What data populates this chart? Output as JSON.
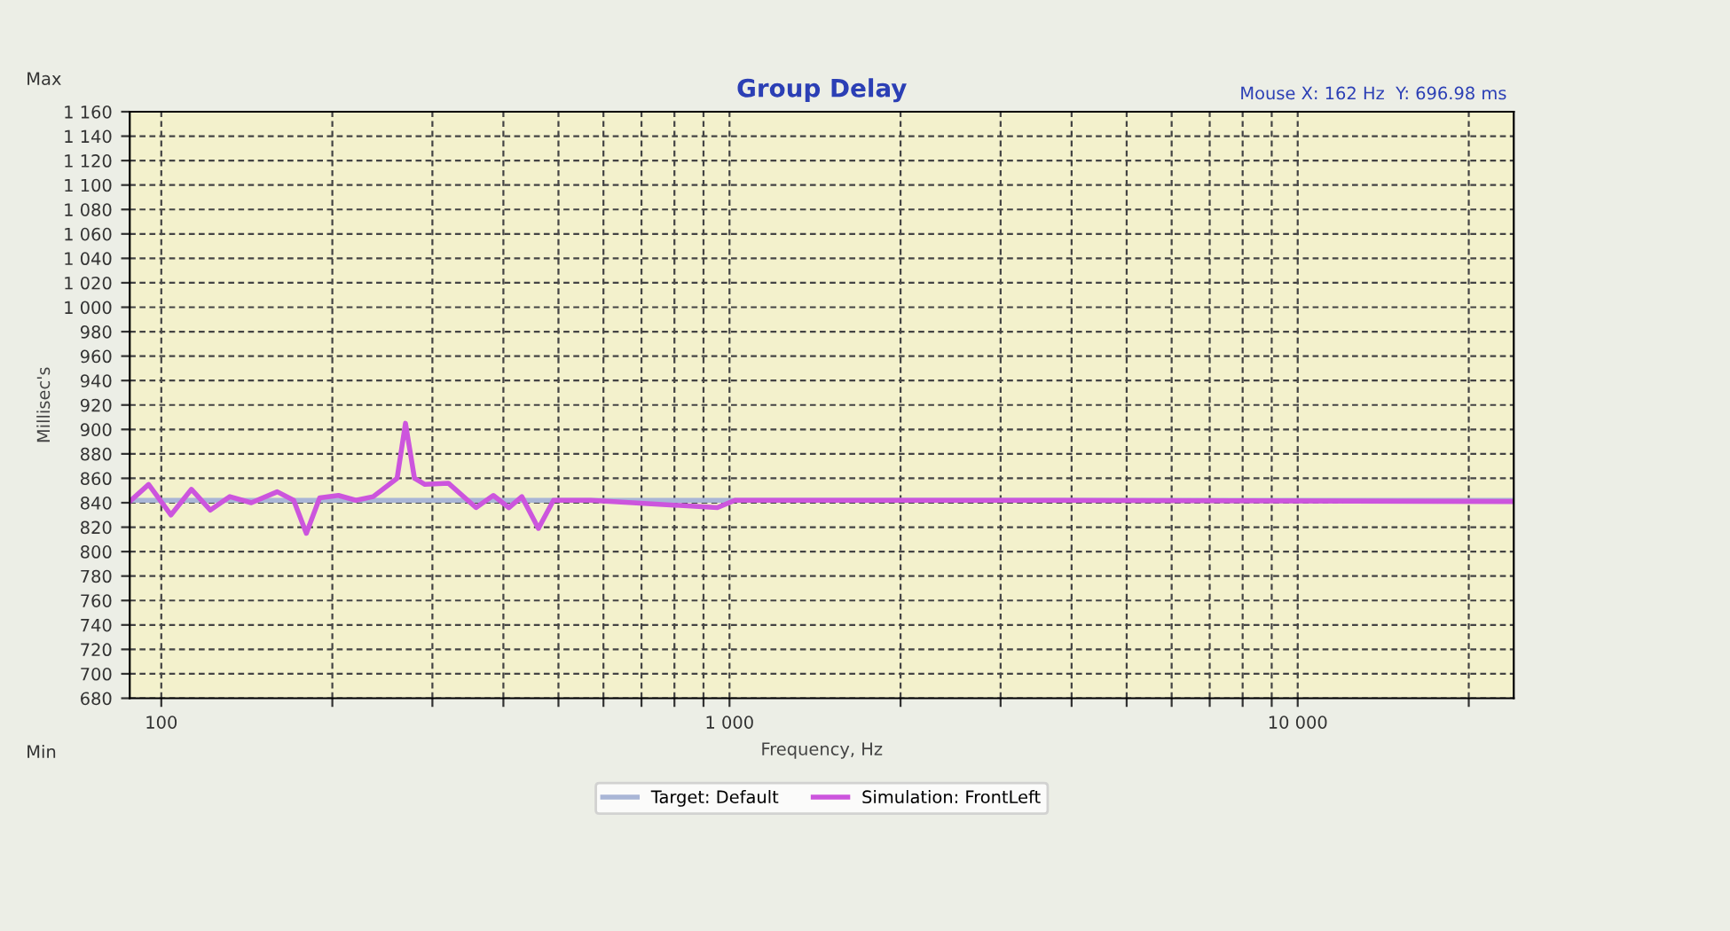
{
  "chart_data": {
    "type": "line",
    "title": "Group Delay",
    "xlabel": "Frequency, Hz",
    "ylabel": "Millisec's",
    "x": [
      88,
      95,
      104,
      113,
      122,
      132,
      144,
      160,
      171,
      180,
      190,
      205,
      220,
      236,
      260,
      269,
      279,
      291,
      320,
      358,
      384,
      409,
      431,
      461,
      490,
      570,
      952,
      1022,
      3800,
      24000
    ],
    "series": [
      {
        "name": "Target: Default",
        "color": "#a9b6d6",
        "values": [
          842,
          842,
          842,
          842,
          842,
          842,
          842,
          842,
          842,
          842,
          842,
          842,
          842,
          842,
          842,
          842,
          842,
          842,
          842,
          842,
          842,
          842,
          842,
          842,
          842,
          842,
          842,
          842,
          842,
          842
        ]
      },
      {
        "name": "Simulation: FrontLeft",
        "color": "#cc55dd",
        "values": [
          841,
          855,
          830,
          851,
          834,
          845,
          840,
          849,
          842,
          815,
          844,
          846,
          842,
          845,
          860,
          905,
          860,
          855,
          856,
          836,
          846,
          836,
          845,
          819,
          842,
          842,
          836,
          842,
          842,
          841
        ]
      }
    ],
    "log": "x",
    "xlim": [
      88,
      24000
    ],
    "xticks": [
      {
        "value": 100,
        "label": "100"
      },
      {
        "value": 200,
        "label": null
      },
      {
        "value": 300,
        "label": null
      },
      {
        "value": 400,
        "label": null
      },
      {
        "value": 500,
        "label": null
      },
      {
        "value": 600,
        "label": null
      },
      {
        "value": 700,
        "label": null
      },
      {
        "value": 800,
        "label": null
      },
      {
        "value": 900,
        "label": null
      },
      {
        "value": 1000,
        "label": "1 000"
      },
      {
        "value": 2000,
        "label": null
      },
      {
        "value": 3000,
        "label": null
      },
      {
        "value": 4000,
        "label": null
      },
      {
        "value": 5000,
        "label": null
      },
      {
        "value": 6000,
        "label": null
      },
      {
        "value": 7000,
        "label": null
      },
      {
        "value": 8000,
        "label": null
      },
      {
        "value": 9000,
        "label": null
      },
      {
        "value": 10000,
        "label": "10 000"
      },
      {
        "value": 20000,
        "label": null
      }
    ],
    "ylim": [
      680,
      1160
    ],
    "yticks": [
      680,
      700,
      720,
      740,
      760,
      780,
      800,
      820,
      840,
      860,
      880,
      900,
      920,
      940,
      960,
      980,
      {
        "value": 1000,
        "label": "1 000"
      },
      {
        "value": 1020,
        "label": "1 020"
      },
      {
        "value": 1040,
        "label": "1 040"
      },
      {
        "value": 1060,
        "label": "1 060"
      },
      {
        "value": 1080,
        "label": "1 080"
      },
      {
        "value": 1100,
        "label": "1 100"
      },
      {
        "value": 1120,
        "label": "1 120"
      },
      {
        "value": 1140,
        "label": "1 140"
      },
      {
        "value": 1160,
        "label": "1 160"
      }
    ],
    "grid": true,
    "legend": "bottom",
    "marker": "none",
    "line_style": "solid",
    "annotations": [
      "Mouse X: 162 Hz  Y: 696.98 ms",
      "Max",
      "Min"
    ]
  }
}
